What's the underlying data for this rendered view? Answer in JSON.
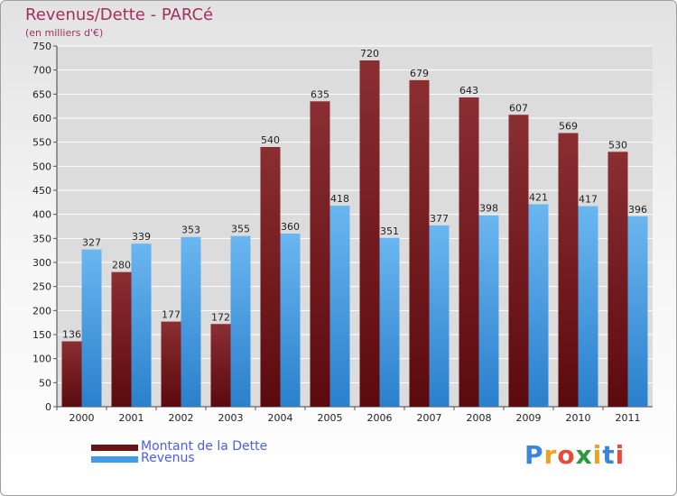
{
  "header": {
    "title": "Revenus/Dette - PARCé",
    "subtitle": "(en milliers d'€)"
  },
  "legend": {
    "items": [
      {
        "label": "Montant de la Dette",
        "color": "#6b1014"
      },
      {
        "label": "Revenus",
        "color": "#3f9ce8"
      }
    ]
  },
  "logo": {
    "letters": [
      "P",
      "r",
      "o",
      "x",
      "i",
      "t",
      "i"
    ],
    "colors": [
      "#3a86d8",
      "#f0a020",
      "#e84a3a",
      "#2a9a3a",
      "#f0a020",
      "#3a86d8",
      "#e84a3a"
    ]
  },
  "colors": {
    "debt_top": "#8a2e32",
    "debt_bottom": "#5c0a0e",
    "rev_top": "#6ab6f0",
    "rev_bottom": "#2a80cc",
    "grid": "#ffffff",
    "axis_text": "#222222"
  },
  "chart_data": {
    "type": "bar",
    "title": "Revenus/Dette - PARCé",
    "ylabel": "(en milliers d'€)",
    "xlabel": "",
    "categories": [
      "2000",
      "2001",
      "2002",
      "2003",
      "2004",
      "2005",
      "2006",
      "2007",
      "2008",
      "2009",
      "2010",
      "2011"
    ],
    "series": [
      {
        "name": "Montant de la Dette",
        "values": [
          136,
          280,
          177,
          172,
          540,
          635,
          720,
          679,
          643,
          607,
          569,
          530
        ]
      },
      {
        "name": "Revenus",
        "values": [
          327,
          339,
          353,
          355,
          360,
          418,
          351,
          377,
          398,
          421,
          417,
          396
        ]
      }
    ],
    "ylim": [
      0,
      750
    ],
    "yticks": [
      0,
      50,
      100,
      150,
      200,
      250,
      300,
      350,
      400,
      450,
      500,
      550,
      600,
      650,
      700,
      750
    ],
    "grid": true,
    "legend_position": "bottom-left"
  }
}
